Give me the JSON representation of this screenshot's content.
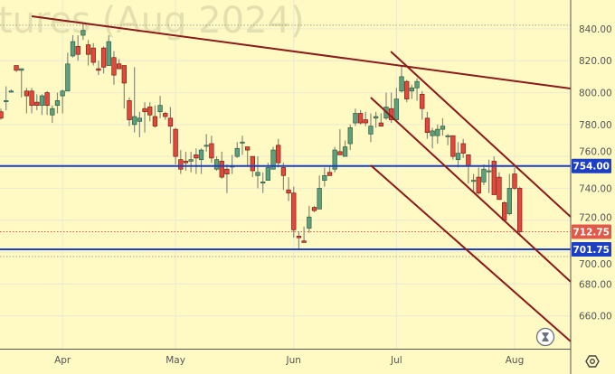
{
  "watermark": "tures (Aug 2024)",
  "colors": {
    "background": "#fffac4",
    "grid": "#eeebd0",
    "up": "#5e9f7c",
    "down": "#e2493c",
    "trendline": "#8b1a1a",
    "level": "#1c3fc4",
    "last_price": "#e05a4a"
  },
  "icons": {
    "bottom_right": "hourglass-icon",
    "axis_corner": "settings-hexagon-icon"
  },
  "chart_data": {
    "type": "candlestick",
    "grid": true,
    "ylim": [
      639.4,
      858.1
    ],
    "y_ticks": [
      "840.00",
      "820.00",
      "800.00",
      "780.00",
      "760.00",
      "740.00",
      "720.00",
      "700.00",
      "680.00",
      "660.00"
    ],
    "y_tick_values": [
      840,
      820,
      800,
      780,
      760,
      740,
      720,
      700,
      680,
      660
    ],
    "x_ticks": [
      {
        "label": "Apr",
        "index": 12
      },
      {
        "label": "May",
        "index": 34
      },
      {
        "label": "Jun",
        "index": 57
      },
      {
        "label": "Jul",
        "index": 77
      },
      {
        "label": "Aug",
        "index": 100
      }
    ],
    "ohlc": [
      [
        788,
        790,
        783,
        784
      ],
      [
        795,
        804,
        789,
        795
      ],
      [
        801,
        802,
        800,
        801
      ],
      [
        817,
        817,
        813,
        814
      ],
      [
        814,
        815,
        797,
        815
      ],
      [
        801,
        803,
        787,
        798
      ],
      [
        801,
        803,
        787,
        792
      ],
      [
        794,
        799,
        789,
        792
      ],
      [
        792,
        799,
        786,
        798
      ],
      [
        800,
        801,
        786,
        792
      ],
      [
        786,
        792,
        781,
        790
      ],
      [
        792,
        800,
        787,
        795
      ],
      [
        798,
        802,
        787,
        801
      ],
      [
        801,
        825,
        801,
        818
      ],
      [
        823,
        836,
        822,
        832
      ],
      [
        829,
        836,
        820,
        824
      ],
      [
        836,
        843,
        833,
        839
      ],
      [
        830,
        833,
        817,
        824
      ],
      [
        828,
        831,
        817,
        819
      ],
      [
        815,
        820,
        811,
        814
      ],
      [
        828,
        829,
        812,
        816
      ],
      [
        817,
        836,
        817,
        832
      ],
      [
        822,
        826,
        805,
        811
      ],
      [
        818,
        821,
        815,
        815
      ],
      [
        817,
        817,
        790,
        806
      ],
      [
        795,
        797,
        779,
        783
      ],
      [
        780,
        816,
        775,
        785
      ],
      [
        782,
        788,
        772,
        784
      ],
      [
        790,
        794,
        775,
        788
      ],
      [
        791,
        794,
        782,
        786
      ],
      [
        785,
        792,
        778,
        779
      ],
      [
        788,
        798,
        784,
        792
      ],
      [
        787,
        788,
        783,
        785
      ],
      [
        784,
        791,
        768,
        779
      ],
      [
        777,
        778,
        755,
        760
      ],
      [
        758,
        764,
        749,
        752
      ],
      [
        757,
        763,
        751,
        756
      ],
      [
        757,
        763,
        750,
        758
      ],
      [
        761,
        765,
        749,
        759
      ],
      [
        758,
        765,
        749,
        764
      ],
      [
        767,
        774,
        763,
        767
      ],
      [
        768,
        773,
        756,
        759
      ],
      [
        752,
        760,
        751,
        758
      ],
      [
        757,
        763,
        746,
        747
      ],
      [
        752,
        755,
        737,
        749
      ],
      [
        754,
        761,
        749,
        754
      ],
      [
        760,
        769,
        759,
        765
      ],
      [
        769,
        773,
        761,
        769
      ],
      [
        766,
        766,
        754,
        764
      ],
      [
        760,
        760,
        747,
        751
      ],
      [
        748,
        760,
        740,
        750
      ],
      [
        744,
        750,
        737,
        744
      ],
      [
        745,
        756,
        745,
        753
      ],
      [
        752,
        766,
        752,
        764
      ],
      [
        767,
        771,
        753,
        756
      ],
      [
        753,
        756,
        739,
        748
      ],
      [
        739,
        747,
        732,
        737
      ],
      [
        737,
        741,
        709,
        714
      ],
      [
        710,
        713,
        702,
        709
      ],
      [
        707,
        716,
        706,
        706
      ],
      [
        715,
        729,
        712,
        722
      ],
      [
        728,
        729,
        725,
        726
      ],
      [
        727,
        748,
        727,
        740
      ],
      [
        745,
        753,
        741,
        748
      ],
      [
        750,
        754,
        748,
        748
      ],
      [
        752,
        766,
        750,
        764
      ],
      [
        763,
        777,
        761,
        761
      ],
      [
        760,
        770,
        760,
        766
      ],
      [
        768,
        780,
        764,
        778
      ],
      [
        781,
        790,
        779,
        787
      ],
      [
        787,
        789,
        780,
        781
      ],
      [
        783,
        788,
        779,
        781
      ],
      [
        774,
        787,
        769,
        779
      ],
      [
        784,
        788,
        778,
        785
      ],
      [
        781,
        787,
        779,
        779
      ],
      [
        784,
        800,
        783,
        791
      ],
      [
        790,
        800,
        781,
        783
      ],
      [
        783,
        803,
        783,
        796
      ],
      [
        801,
        817,
        800,
        810
      ],
      [
        807,
        808,
        794,
        796
      ],
      [
        801,
        805,
        796,
        803
      ],
      [
        803,
        809,
        795,
        807
      ],
      [
        799,
        801,
        783,
        790
      ],
      [
        784,
        788,
        771,
        775
      ],
      [
        773,
        778,
        765,
        776
      ],
      [
        773,
        780,
        768,
        777
      ],
      [
        777,
        784,
        773,
        779
      ],
      [
        773,
        774,
        767,
        773
      ],
      [
        773,
        773,
        758,
        760
      ],
      [
        758,
        769,
        753,
        762
      ],
      [
        768,
        771,
        759,
        762
      ],
      [
        761,
        761,
        743,
        754
      ],
      [
        745,
        749,
        737,
        745
      ],
      [
        747,
        753,
        736,
        737
      ],
      [
        744,
        755,
        742,
        752
      ],
      [
        751,
        758,
        737,
        751
      ],
      [
        757,
        760,
        736,
        736
      ],
      [
        747,
        750,
        733,
        733
      ],
      [
        731,
        732,
        720,
        720
      ],
      [
        724,
        749,
        723,
        740
      ],
      [
        749,
        753,
        739,
        740
      ],
      [
        740,
        741,
        711,
        712.75
      ]
    ],
    "trendlines": [
      {
        "start": [
          6,
          847.9
        ],
        "end": [
          110.9,
          802.6
        ]
      },
      {
        "start": [
          75.9,
          825.8
        ],
        "end": [
          110.9,
          722.1
        ]
      },
      {
        "start": [
          72,
          796.9
        ],
        "end": [
          110.9,
          681.4
        ]
      },
      {
        "start": [
          72,
          754.4
        ],
        "end": [
          110.9,
          644.0
        ]
      }
    ],
    "horizontal_levels": [
      {
        "value": 754.0,
        "label": "754.00"
      },
      {
        "value": 701.75,
        "label": "701.75"
      }
    ],
    "last_price": {
      "value": 712.75,
      "label": "712.75"
    },
    "range_markers": [
      842.3,
      697.2
    ]
  }
}
